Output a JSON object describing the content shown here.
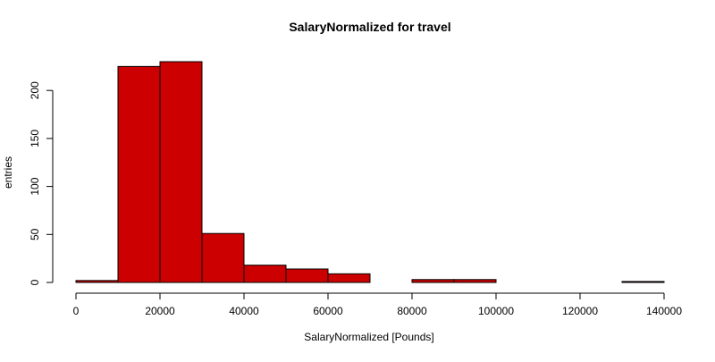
{
  "chart_data": {
    "type": "bar",
    "title": "SalaryNormalized for travel",
    "xlabel": "SalaryNormalized [Pounds]",
    "ylabel": "entries",
    "bin_edges": [
      0,
      10000,
      20000,
      30000,
      40000,
      50000,
      60000,
      70000,
      80000,
      90000,
      100000,
      110000,
      120000,
      130000,
      140000
    ],
    "values": [
      2,
      225,
      230,
      51,
      18,
      14,
      9,
      0,
      3,
      3,
      0,
      0,
      0,
      1
    ],
    "xlim": [
      0,
      140000
    ],
    "ylim": [
      0,
      230
    ],
    "x_ticks": [
      0,
      20000,
      40000,
      60000,
      80000,
      100000,
      120000,
      140000
    ],
    "x_tick_labels": [
      "0",
      "20000",
      "40000",
      "60000",
      "80000",
      "100000",
      "120000",
      "140000"
    ],
    "y_ticks": [
      0,
      50,
      100,
      150,
      200
    ],
    "y_tick_labels": [
      "0",
      "50",
      "100",
      "150",
      "200"
    ],
    "bar_color": "#cc0000",
    "grid": false,
    "legend": "none"
  }
}
